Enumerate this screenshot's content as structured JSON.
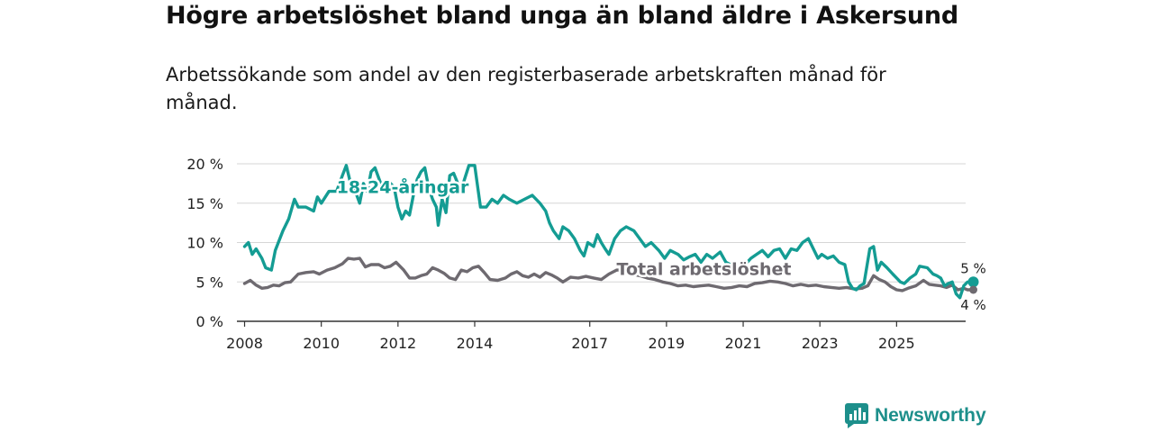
{
  "title": "Högre arbetslöshet bland unga än bland äldre i Askersund",
  "subtitle": "Arbetssökande som andel av den registerbaserade arbetskraften månad för månad.",
  "brand": {
    "name": "Newsworthy"
  },
  "colors": {
    "youth": "#149c93",
    "total": "#6e6a70",
    "brand": "#1d8f8b"
  },
  "chart_data": {
    "type": "line",
    "ylim": [
      0,
      20
    ],
    "xlim": [
      2007.8,
      2026.8
    ],
    "y_ticks": [
      {
        "value": 0,
        "label": "0 %"
      },
      {
        "value": 5,
        "label": "5 %"
      },
      {
        "value": 10,
        "label": "10 %"
      },
      {
        "value": 15,
        "label": "15 %"
      },
      {
        "value": 20,
        "label": "20 %"
      }
    ],
    "x_ticks": [
      {
        "value": 2008,
        "label": "2008"
      },
      {
        "value": 2010,
        "label": "2010"
      },
      {
        "value": 2012,
        "label": "2012"
      },
      {
        "value": 2014,
        "label": "2014"
      },
      {
        "value": 2017,
        "label": "2017"
      },
      {
        "value": 2019,
        "label": "2019"
      },
      {
        "value": 2021,
        "label": "2021"
      },
      {
        "value": 2023,
        "label": "2023"
      },
      {
        "value": 2025,
        "label": "2025"
      }
    ],
    "series": [
      {
        "name": "18-24-åringar",
        "label_anchor": {
          "x": 2010.4,
          "y": 16.3
        },
        "end_label": "5 %",
        "end_value": 5,
        "points": [
          [
            2008.0,
            9.5
          ],
          [
            2008.1,
            10.0
          ],
          [
            2008.2,
            8.5
          ],
          [
            2008.3,
            9.2
          ],
          [
            2008.45,
            8.0
          ],
          [
            2008.55,
            6.8
          ],
          [
            2008.7,
            6.5
          ],
          [
            2008.8,
            9.0
          ],
          [
            2009.0,
            11.5
          ],
          [
            2009.15,
            13.0
          ],
          [
            2009.3,
            15.5
          ],
          [
            2009.4,
            14.5
          ],
          [
            2009.6,
            14.5
          ],
          [
            2009.8,
            14.0
          ],
          [
            2009.9,
            15.8
          ],
          [
            2010.0,
            15.0
          ],
          [
            2010.2,
            16.5
          ],
          [
            2010.4,
            16.5
          ],
          [
            2010.55,
            18.5
          ],
          [
            2010.65,
            19.8
          ],
          [
            2010.75,
            17.8
          ],
          [
            2010.85,
            17.0
          ],
          [
            2011.0,
            15.0
          ],
          [
            2011.1,
            17.5
          ],
          [
            2011.2,
            16.5
          ],
          [
            2011.3,
            19.0
          ],
          [
            2011.4,
            19.5
          ],
          [
            2011.55,
            17.5
          ],
          [
            2011.65,
            16.8
          ],
          [
            2011.75,
            17.8
          ],
          [
            2011.9,
            17.0
          ],
          [
            2012.0,
            14.5
          ],
          [
            2012.1,
            13.0
          ],
          [
            2012.2,
            14.0
          ],
          [
            2012.3,
            13.5
          ],
          [
            2012.4,
            16.0
          ],
          [
            2012.5,
            18.0
          ],
          [
            2012.6,
            19.0
          ],
          [
            2012.7,
            19.5
          ],
          [
            2012.8,
            17.0
          ],
          [
            2012.9,
            15.5
          ],
          [
            2013.0,
            14.5
          ],
          [
            2013.05,
            12.2
          ],
          [
            2013.15,
            15.5
          ],
          [
            2013.25,
            13.8
          ],
          [
            2013.35,
            18.5
          ],
          [
            2013.45,
            18.8
          ],
          [
            2013.6,
            17.0
          ],
          [
            2013.7,
            17.5
          ],
          [
            2013.85,
            19.8
          ],
          [
            2014.0,
            19.8
          ],
          [
            2014.15,
            14.5
          ],
          [
            2014.3,
            14.5
          ],
          [
            2014.45,
            15.5
          ],
          [
            2014.6,
            15.0
          ],
          [
            2014.75,
            16.0
          ],
          [
            2014.9,
            15.5
          ],
          [
            2015.1,
            15.0
          ],
          [
            2015.3,
            15.5
          ],
          [
            2015.5,
            16.0
          ],
          [
            2015.7,
            15.0
          ],
          [
            2015.85,
            14.0
          ],
          [
            2015.95,
            12.5
          ],
          [
            2016.05,
            11.5
          ],
          [
            2016.2,
            10.5
          ],
          [
            2016.3,
            12.0
          ],
          [
            2016.45,
            11.5
          ],
          [
            2016.6,
            10.5
          ],
          [
            2016.75,
            9.0
          ],
          [
            2016.85,
            8.3
          ],
          [
            2016.95,
            10.0
          ],
          [
            2017.1,
            9.5
          ],
          [
            2017.2,
            11.0
          ],
          [
            2017.3,
            10.0
          ],
          [
            2017.4,
            9.2
          ],
          [
            2017.5,
            8.5
          ],
          [
            2017.65,
            10.5
          ],
          [
            2017.8,
            11.5
          ],
          [
            2017.95,
            12.0
          ],
          [
            2018.15,
            11.5
          ],
          [
            2018.3,
            10.5
          ],
          [
            2018.45,
            9.5
          ],
          [
            2018.6,
            10.0
          ],
          [
            2018.8,
            9.0
          ],
          [
            2018.95,
            8.0
          ],
          [
            2019.1,
            9.0
          ],
          [
            2019.3,
            8.5
          ],
          [
            2019.45,
            7.8
          ],
          [
            2019.6,
            8.2
          ],
          [
            2019.75,
            8.5
          ],
          [
            2019.9,
            7.5
          ],
          [
            2020.05,
            8.5
          ],
          [
            2020.2,
            8.0
          ],
          [
            2020.4,
            8.8
          ],
          [
            2020.55,
            7.5
          ],
          [
            2020.75,
            7.0
          ],
          [
            2020.9,
            7.0
          ],
          [
            2021.05,
            7.2
          ],
          [
            2021.2,
            8.0
          ],
          [
            2021.35,
            8.5
          ],
          [
            2021.5,
            9.0
          ],
          [
            2021.65,
            8.2
          ],
          [
            2021.8,
            9.0
          ],
          [
            2021.95,
            9.2
          ],
          [
            2022.1,
            8.0
          ],
          [
            2022.25,
            9.2
          ],
          [
            2022.4,
            9.0
          ],
          [
            2022.55,
            10.0
          ],
          [
            2022.7,
            10.5
          ],
          [
            2022.85,
            9.0
          ],
          [
            2022.95,
            8.0
          ],
          [
            2023.05,
            8.5
          ],
          [
            2023.2,
            8.0
          ],
          [
            2023.35,
            8.3
          ],
          [
            2023.5,
            7.5
          ],
          [
            2023.65,
            7.2
          ],
          [
            2023.75,
            5.0
          ],
          [
            2023.85,
            4.2
          ],
          [
            2023.95,
            4.0
          ],
          [
            2024.05,
            4.5
          ],
          [
            2024.15,
            4.8
          ],
          [
            2024.3,
            9.2
          ],
          [
            2024.4,
            9.5
          ],
          [
            2024.5,
            6.5
          ],
          [
            2024.6,
            7.5
          ],
          [
            2024.75,
            6.8
          ],
          [
            2024.9,
            6.0
          ],
          [
            2025.0,
            5.5
          ],
          [
            2025.1,
            5.0
          ],
          [
            2025.2,
            4.8
          ],
          [
            2025.35,
            5.5
          ],
          [
            2025.5,
            6.0
          ],
          [
            2025.6,
            7.0
          ],
          [
            2025.8,
            6.8
          ],
          [
            2025.95,
            6.0
          ],
          [
            2026.05,
            5.8
          ],
          [
            2026.15,
            5.5
          ],
          [
            2026.25,
            4.5
          ],
          [
            2026.35,
            4.8
          ],
          [
            2026.45,
            5.0
          ],
          [
            2026.55,
            3.5
          ],
          [
            2026.65,
            3.0
          ],
          [
            2026.75,
            4.5
          ],
          [
            2026.85,
            5.0
          ],
          [
            2027.0,
            5.0
          ]
        ]
      },
      {
        "name": "Total arbetslöshet",
        "label_anchor": {
          "x": 2017.7,
          "y": 5.9
        },
        "end_label": "4 %",
        "end_value": 4,
        "points": [
          [
            2008.0,
            4.8
          ],
          [
            2008.15,
            5.2
          ],
          [
            2008.3,
            4.6
          ],
          [
            2008.45,
            4.2
          ],
          [
            2008.6,
            4.3
          ],
          [
            2008.75,
            4.6
          ],
          [
            2008.9,
            4.5
          ],
          [
            2009.05,
            4.9
          ],
          [
            2009.2,
            5.0
          ],
          [
            2009.4,
            6.0
          ],
          [
            2009.6,
            6.2
          ],
          [
            2009.8,
            6.3
          ],
          [
            2009.95,
            6.0
          ],
          [
            2010.15,
            6.5
          ],
          [
            2010.35,
            6.8
          ],
          [
            2010.55,
            7.3
          ],
          [
            2010.7,
            8.0
          ],
          [
            2010.85,
            7.9
          ],
          [
            2011.0,
            8.0
          ],
          [
            2011.15,
            6.9
          ],
          [
            2011.3,
            7.2
          ],
          [
            2011.5,
            7.2
          ],
          [
            2011.65,
            6.8
          ],
          [
            2011.8,
            7.0
          ],
          [
            2011.95,
            7.5
          ],
          [
            2012.15,
            6.5
          ],
          [
            2012.3,
            5.5
          ],
          [
            2012.45,
            5.5
          ],
          [
            2012.6,
            5.8
          ],
          [
            2012.75,
            6.0
          ],
          [
            2012.9,
            6.8
          ],
          [
            2013.05,
            6.5
          ],
          [
            2013.2,
            6.1
          ],
          [
            2013.35,
            5.5
          ],
          [
            2013.5,
            5.3
          ],
          [
            2013.65,
            6.5
          ],
          [
            2013.8,
            6.3
          ],
          [
            2013.95,
            6.8
          ],
          [
            2014.1,
            7.0
          ],
          [
            2014.25,
            6.2
          ],
          [
            2014.4,
            5.3
          ],
          [
            2014.6,
            5.2
          ],
          [
            2014.8,
            5.5
          ],
          [
            2014.95,
            6.0
          ],
          [
            2015.1,
            6.3
          ],
          [
            2015.25,
            5.8
          ],
          [
            2015.4,
            5.6
          ],
          [
            2015.55,
            6.0
          ],
          [
            2015.7,
            5.6
          ],
          [
            2015.85,
            6.2
          ],
          [
            2016.0,
            5.9
          ],
          [
            2016.15,
            5.5
          ],
          [
            2016.3,
            5.0
          ],
          [
            2016.5,
            5.6
          ],
          [
            2016.7,
            5.5
          ],
          [
            2016.9,
            5.7
          ],
          [
            2017.1,
            5.5
          ],
          [
            2017.3,
            5.3
          ],
          [
            2017.5,
            6.0
          ],
          [
            2017.7,
            6.5
          ],
          [
            2017.9,
            6.5
          ],
          [
            2018.1,
            6.0
          ],
          [
            2018.3,
            5.8
          ],
          [
            2018.5,
            5.5
          ],
          [
            2018.7,
            5.3
          ],
          [
            2018.9,
            5.0
          ],
          [
            2019.1,
            4.8
          ],
          [
            2019.3,
            4.5
          ],
          [
            2019.5,
            4.6
          ],
          [
            2019.7,
            4.4
          ],
          [
            2019.9,
            4.5
          ],
          [
            2020.1,
            4.6
          ],
          [
            2020.3,
            4.4
          ],
          [
            2020.5,
            4.2
          ],
          [
            2020.7,
            4.3
          ],
          [
            2020.9,
            4.5
          ],
          [
            2021.1,
            4.4
          ],
          [
            2021.3,
            4.8
          ],
          [
            2021.5,
            4.9
          ],
          [
            2021.7,
            5.1
          ],
          [
            2021.9,
            5.0
          ],
          [
            2022.1,
            4.8
          ],
          [
            2022.3,
            4.5
          ],
          [
            2022.5,
            4.7
          ],
          [
            2022.7,
            4.5
          ],
          [
            2022.9,
            4.6
          ],
          [
            2023.1,
            4.4
          ],
          [
            2023.3,
            4.3
          ],
          [
            2023.5,
            4.2
          ],
          [
            2023.7,
            4.3
          ],
          [
            2023.9,
            4.1
          ],
          [
            2024.1,
            4.2
          ],
          [
            2024.25,
            4.5
          ],
          [
            2024.4,
            5.8
          ],
          [
            2024.55,
            5.3
          ],
          [
            2024.7,
            5.0
          ],
          [
            2024.85,
            4.4
          ],
          [
            2025.0,
            4.0
          ],
          [
            2025.15,
            3.9
          ],
          [
            2025.3,
            4.2
          ],
          [
            2025.5,
            4.5
          ],
          [
            2025.7,
            5.2
          ],
          [
            2025.85,
            4.7
          ],
          [
            2026.0,
            4.6
          ],
          [
            2026.15,
            4.5
          ],
          [
            2026.3,
            4.3
          ],
          [
            2026.45,
            4.6
          ],
          [
            2026.6,
            4.0
          ],
          [
            2026.75,
            4.2
          ],
          [
            2026.85,
            4.0
          ],
          [
            2027.0,
            4.0
          ]
        ]
      }
    ]
  }
}
